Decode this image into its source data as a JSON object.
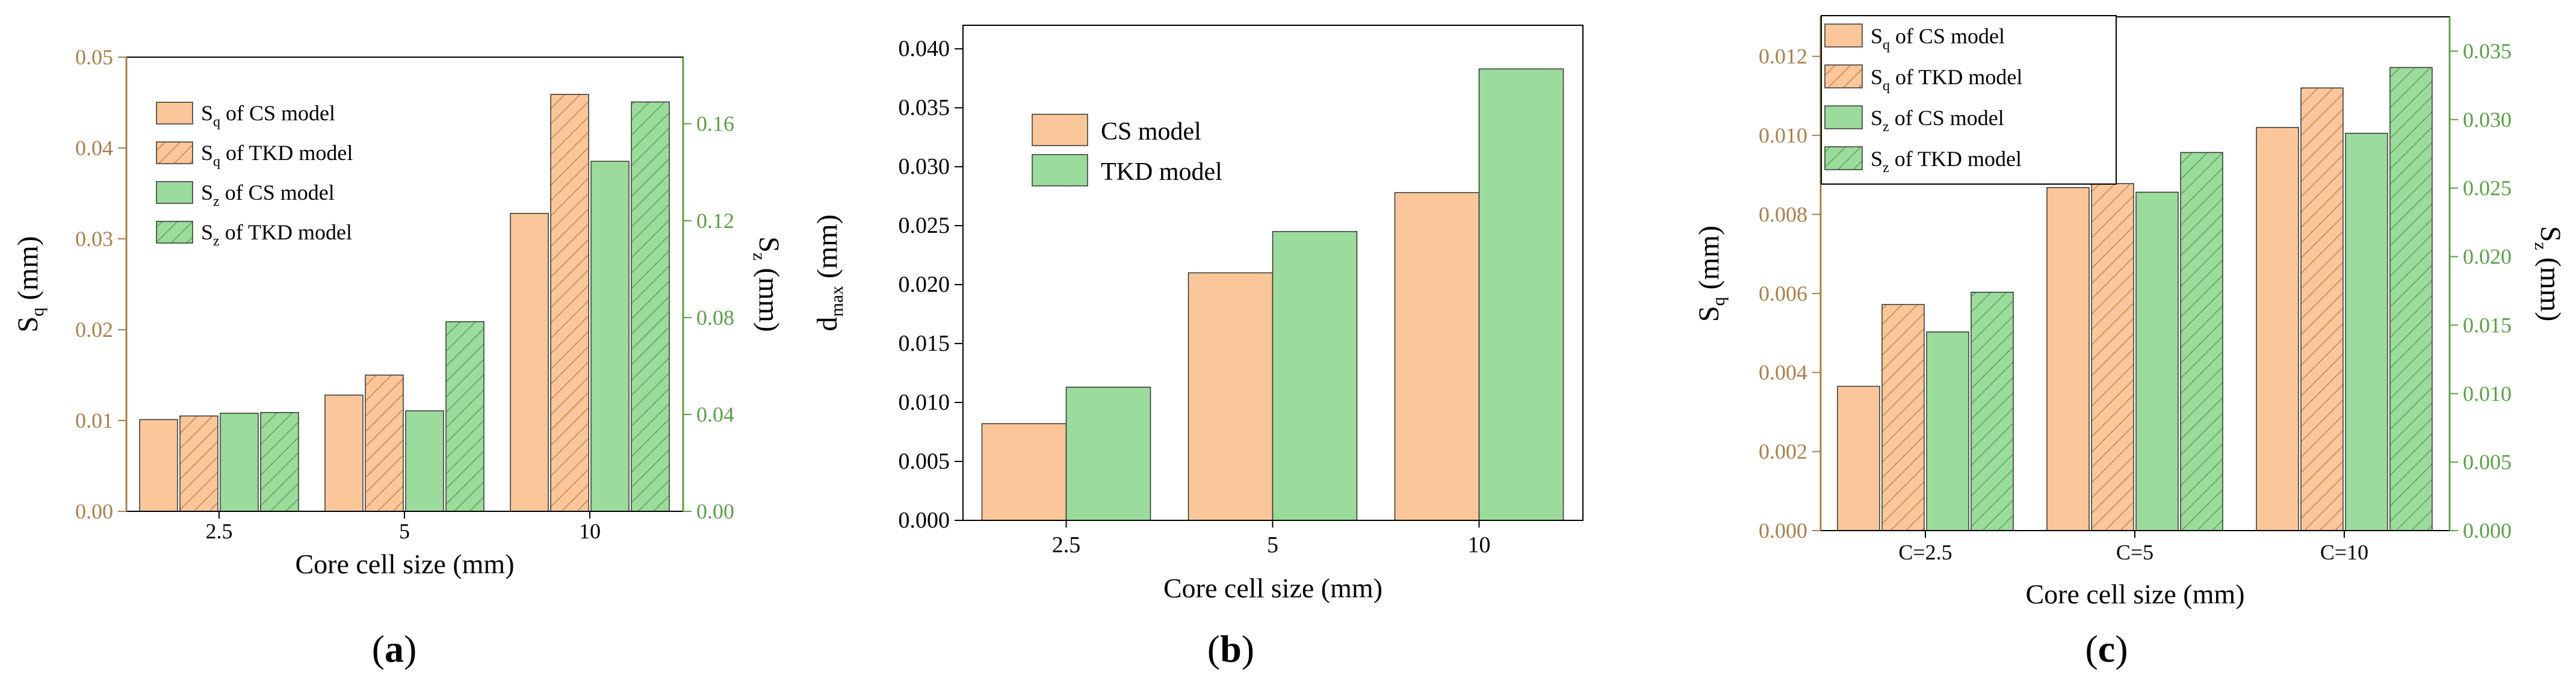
{
  "colors": {
    "cs": "#fbc79a",
    "tkd": "#9bdb9b",
    "hatch_cs": "#c8834d",
    "hatch_tkd": "#5aa35a",
    "left_axis": "#a8804c",
    "right_axis": "#5d9e4a",
    "axis": "#000000"
  },
  "chart_data": [
    {
      "panel": "(a)",
      "panel_letter": "a",
      "type": "bar",
      "xlabel": "Core cell size (mm)",
      "categories": [
        "2.5",
        "5",
        "10"
      ],
      "y_left": {
        "label_main": "S",
        "label_sub": "q",
        "unit": " (mm)",
        "range": [
          0,
          0.05
        ],
        "ticks": [
          0.0,
          0.01,
          0.02,
          0.03,
          0.04,
          0.05
        ],
        "tick_labels": [
          "0.00",
          "0.01",
          "0.02",
          "0.03",
          "0.04",
          "0.05"
        ]
      },
      "y_right": {
        "label_main": "S",
        "label_sub": "z",
        "unit": " (mm)",
        "range": [
          0,
          0.1875
        ],
        "ticks": [
          0.0,
          0.04,
          0.08,
          0.12,
          0.16
        ],
        "tick_labels": [
          "0.00",
          "0.04",
          "0.08",
          "0.12",
          "0.16"
        ]
      },
      "series": [
        {
          "main": "S",
          "sub": "q",
          "suffix": " of CS model",
          "axis": "left",
          "color": "cs",
          "hatch": false,
          "values": [
            0.0101,
            0.0128,
            0.0328
          ]
        },
        {
          "main": "S",
          "sub": "q",
          "suffix": " of TKD model",
          "axis": "left",
          "color": "cs",
          "hatch": true,
          "values": [
            0.0105,
            0.015,
            0.0459
          ]
        },
        {
          "main": "S",
          "sub": "z",
          "suffix": " of CS model",
          "axis": "right",
          "color": "tkd",
          "hatch": false,
          "values": [
            0.0405,
            0.0415,
            0.1445
          ]
        },
        {
          "main": "S",
          "sub": "z",
          "suffix": " of TKD model",
          "axis": "right",
          "color": "tkd",
          "hatch": true,
          "values": [
            0.0408,
            0.0783,
            0.169
          ]
        }
      ]
    },
    {
      "panel": "(b)",
      "panel_letter": "b",
      "type": "bar",
      "xlabel": "Core cell size (mm)",
      "categories": [
        "2.5",
        "5",
        "10"
      ],
      "y_left": {
        "label_main": "d",
        "label_sub": "max",
        "unit": " (mm)",
        "range": [
          0,
          0.042
        ],
        "ticks": [
          0.0,
          0.005,
          0.01,
          0.015,
          0.02,
          0.025,
          0.03,
          0.035,
          0.04
        ],
        "tick_labels": [
          "0.000",
          "0.005",
          "0.010",
          "0.015",
          "0.020",
          "0.025",
          "0.030",
          "0.035",
          "0.040"
        ]
      },
      "series": [
        {
          "name": "CS  model",
          "axis": "left",
          "color": "cs",
          "hatch": false,
          "values": [
            0.0082,
            0.021,
            0.0278
          ]
        },
        {
          "name": "TKD model",
          "axis": "left",
          "color": "tkd",
          "hatch": false,
          "values": [
            0.0113,
            0.0245,
            0.0383
          ]
        }
      ]
    },
    {
      "panel": "(c)",
      "panel_letter": "c",
      "type": "bar",
      "xlabel": "Core cell size (mm)",
      "categories": [
        "C=2.5",
        "C=5",
        "C=10"
      ],
      "y_left": {
        "label_main": "S",
        "label_sub": "q",
        "unit": " (mm)",
        "range": [
          0,
          0.013
        ],
        "ticks": [
          0.0,
          0.002,
          0.004,
          0.006,
          0.008,
          0.01,
          0.012
        ],
        "tick_labels": [
          "0.000",
          "0.002",
          "0.004",
          "0.006",
          "0.008",
          "0.010",
          "0.012"
        ]
      },
      "y_right": {
        "label_main": "S",
        "label_sub": "z",
        "unit": " (mm)",
        "range": [
          0,
          0.0375
        ],
        "ticks": [
          0.0,
          0.005,
          0.01,
          0.015,
          0.02,
          0.025,
          0.03,
          0.035
        ],
        "tick_labels": [
          "0.000",
          "0.005",
          "0.010",
          "0.015",
          "0.020",
          "0.025",
          "0.030",
          "0.035"
        ]
      },
      "series": [
        {
          "main": "S",
          "sub": "q",
          "suffix": " of CS model",
          "axis": "left",
          "color": "cs",
          "hatch": false,
          "values": [
            0.00365,
            0.00868,
            0.0102
          ]
        },
        {
          "main": "S",
          "sub": "q",
          "suffix": " of TKD model",
          "axis": "left",
          "color": "cs",
          "hatch": true,
          "values": [
            0.00572,
            0.00878,
            0.0112
          ]
        },
        {
          "main": "S",
          "sub": "z",
          "suffix": " of CS model",
          "axis": "right",
          "color": "tkd",
          "hatch": false,
          "values": [
            0.0145,
            0.0247,
            0.029
          ]
        },
        {
          "main": "S",
          "sub": "z",
          "suffix": " of TKD model",
          "axis": "right",
          "color": "tkd",
          "hatch": true,
          "values": [
            0.0174,
            0.0276,
            0.0338
          ]
        }
      ]
    }
  ]
}
